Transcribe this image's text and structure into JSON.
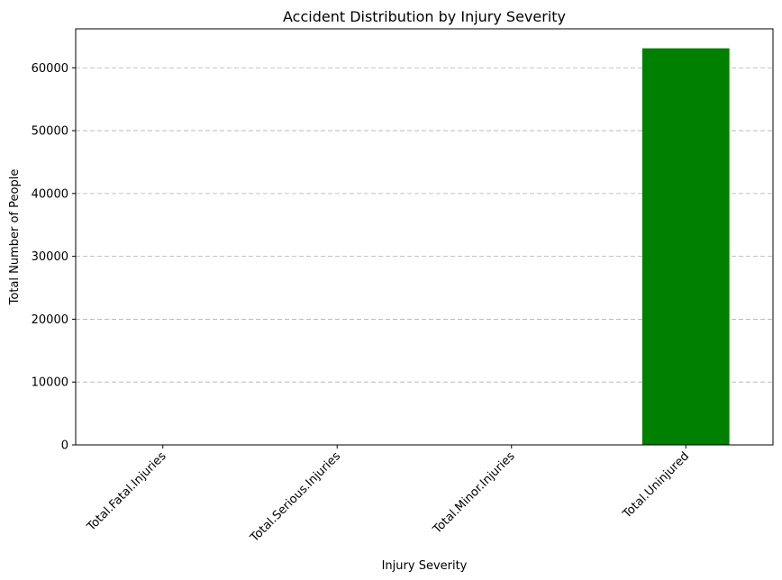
{
  "chart_data": {
    "type": "bar",
    "title": "Accident Distribution by Injury Severity",
    "xlabel": "Injury Severity",
    "ylabel": "Total Number of People",
    "categories": [
      "Total.Fatal.Injuries",
      "Total.Serious.Injuries",
      "Total.Minor.Injuries",
      "Total.Uninjured"
    ],
    "values": [
      0,
      0,
      0,
      63100
    ],
    "bar_color": "#008000",
    "ylim": [
      0,
      66200
    ],
    "yticks": [
      0,
      10000,
      20000,
      30000,
      40000,
      50000,
      60000
    ],
    "ytick_labels": [
      "0",
      "10000",
      "20000",
      "30000",
      "40000",
      "50000",
      "60000"
    ],
    "grid": true,
    "grid_axis": "y",
    "xtick_rotation": 45
  }
}
